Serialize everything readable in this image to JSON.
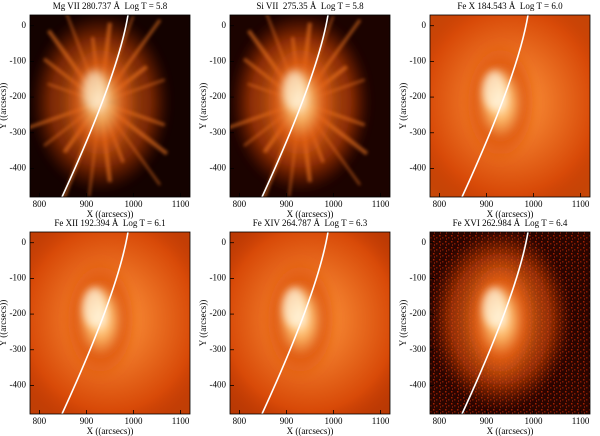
{
  "chart_data": [
    {
      "type": "image",
      "title": "Mg VII 280.737 Å  Log T = 5.8",
      "xlabel": "X ((arcsecs))",
      "ylabel": "Y ((arcsecs))",
      "xlim": [
        780,
        1120
      ],
      "ylim": [
        -480,
        30
      ],
      "xticks": [
        800,
        900,
        1000,
        1100
      ],
      "yticks": [
        0,
        -100,
        -200,
        -300,
        -400
      ]
    },
    {
      "type": "image",
      "title": "Si VII  275.35 Å  Log T = 5.8",
      "xlabel": "X ((arcsecs))",
      "ylabel": "Y ((arcsecs))",
      "xlim": [
        780,
        1120
      ],
      "ylim": [
        -480,
        30
      ],
      "xticks": [
        800,
        900,
        1000,
        1100
      ],
      "yticks": [
        0,
        -100,
        -200,
        -300,
        -400
      ]
    },
    {
      "type": "image",
      "title": "Fe X 184.543 Å  Log T = 6.0",
      "xlabel": "X ((arcsecs))",
      "ylabel": "Y ((arcsecs))",
      "xlim": [
        780,
        1120
      ],
      "ylim": [
        -480,
        30
      ],
      "xticks": [
        800,
        900,
        1000,
        1100
      ],
      "yticks": [
        0,
        -100,
        -200,
        -300,
        -400
      ]
    },
    {
      "type": "image",
      "title": "Fe XII 192.394 Å  Log T = 6.1",
      "xlabel": "X ((arcsecs))",
      "ylabel": "Y ((arcsecs))",
      "xlim": [
        780,
        1120
      ],
      "ylim": [
        -480,
        30
      ],
      "xticks": [
        800,
        900,
        1000,
        1100
      ],
      "yticks": [
        0,
        -100,
        -200,
        -300,
        -400
      ]
    },
    {
      "type": "image",
      "title": "Fe XIV 264.787 Å  Log T = 6.3",
      "xlabel": "X ((arcsecs))",
      "ylabel": "Y ((arcsecs))",
      "xlim": [
        780,
        1120
      ],
      "ylim": [
        -480,
        30
      ],
      "xticks": [
        800,
        900,
        1000,
        1100
      ],
      "yticks": [
        0,
        -100,
        -200,
        -300,
        -400
      ]
    },
    {
      "type": "image",
      "title": "Fe XVI 262.984 Å  Log T = 6.4",
      "xlabel": "X ((arcsecs))",
      "ylabel": "Y ((arcsecs))",
      "xlim": [
        780,
        1120
      ],
      "ylim": [
        -480,
        30
      ],
      "xticks": [
        800,
        900,
        1000,
        1100
      ],
      "yticks": [
        0,
        -100,
        -200,
        -300,
        -400
      ]
    }
  ]
}
